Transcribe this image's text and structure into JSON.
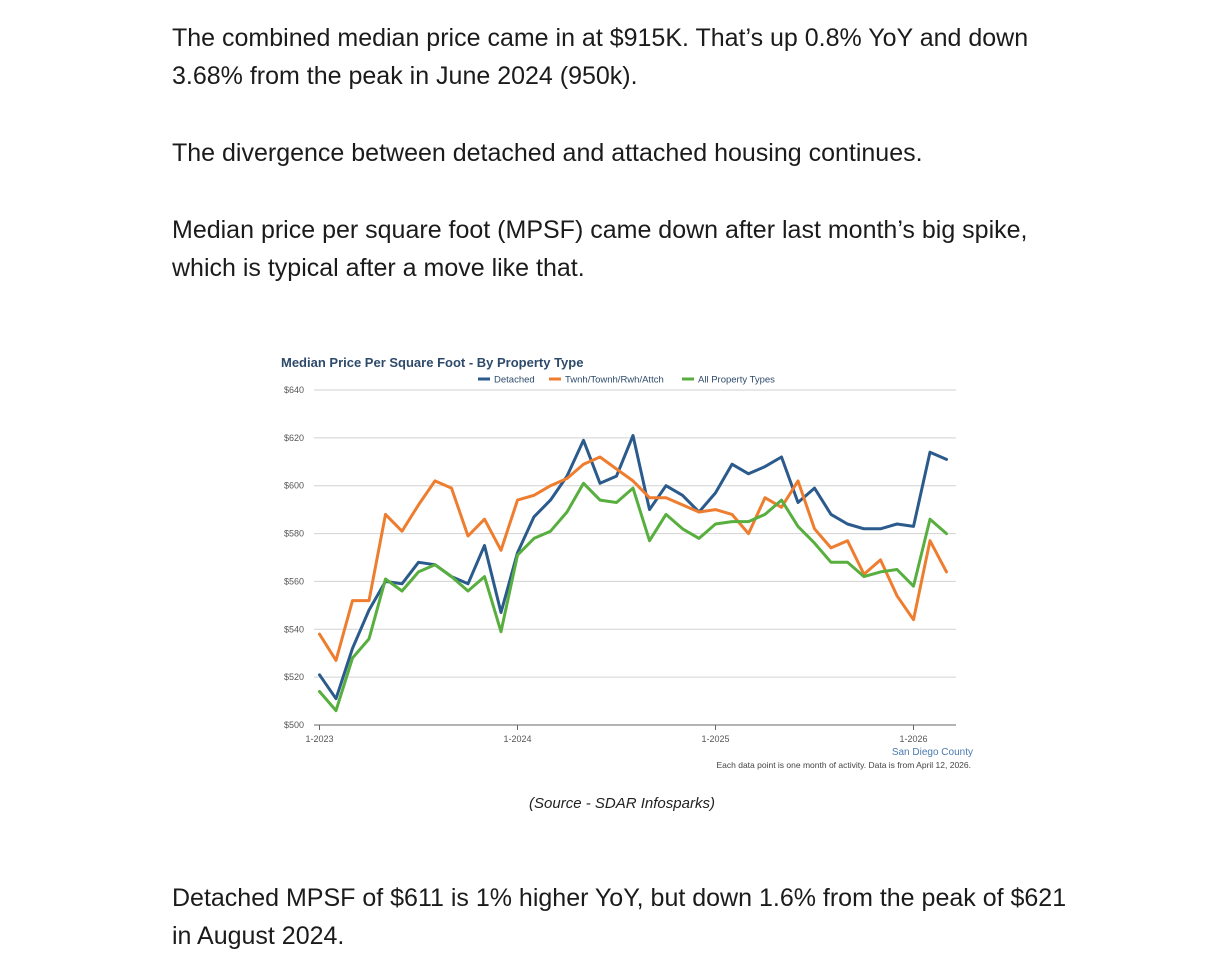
{
  "article": {
    "p1": "The combined median price came in at $915K. That’s up 0.8% YoY and down 3.68% from the peak in June 2024 (950k).",
    "p2": "The divergence between detached and attached housing continues.",
    "p3": "Median price per square foot (MPSF) came down after last month’s big spike, which is typical after a move like that.",
    "caption": "(Source - SDAR Infosparks)",
    "p4": "Detached MPSF of $611 is 1% higher YoY, but down 1.6% from the peak of $621 in August 2024."
  },
  "chart_data": {
    "type": "line",
    "title": "Median Price Per Square Foot - By Property Type",
    "region_label": "San Diego County",
    "footnote": "Each data point is one month of activity. Data is from April 12, 2026.",
    "legend_position": "top-center",
    "grid": true,
    "x_start": "2023-01",
    "x_tick_labels": [
      "1-2023",
      "1-2024",
      "1-2025",
      "1-2026"
    ],
    "y_tick_labels": [
      "$500",
      "$520",
      "$540",
      "$560",
      "$580",
      "$600",
      "$620",
      "$640"
    ],
    "ylim": [
      500,
      640
    ],
    "series": [
      {
        "name": "Detached",
        "color": "#2b5a8c",
        "values": [
          521,
          511,
          532,
          548,
          560,
          559,
          568,
          567,
          562,
          559,
          575,
          547,
          572,
          587,
          594,
          604,
          619,
          601,
          604,
          621,
          590,
          600,
          596,
          589,
          597,
          609,
          605,
          608,
          612,
          593,
          599,
          588,
          584,
          582,
          582,
          584,
          583,
          614,
          611
        ]
      },
      {
        "name": "Twnh/Townh/Rwh/Attch",
        "color": "#ee7d2f",
        "values": [
          538,
          527,
          552,
          552,
          588,
          581,
          592,
          602,
          599,
          579,
          586,
          573,
          594,
          596,
          600,
          603,
          609,
          612,
          607,
          602,
          595,
          595,
          592,
          589,
          590,
          588,
          580,
          595,
          591,
          602,
          582,
          574,
          577,
          563,
          569,
          554,
          544,
          577,
          564
        ]
      },
      {
        "name": "All Property Types",
        "color": "#58ae3e",
        "values": [
          514,
          506,
          528,
          536,
          561,
          556,
          564,
          567,
          562,
          556,
          562,
          539,
          571,
          578,
          581,
          589,
          601,
          594,
          593,
          599,
          577,
          588,
          582,
          578,
          584,
          585,
          585,
          588,
          594,
          583,
          576,
          568,
          568,
          562,
          564,
          565,
          558,
          586,
          580
        ]
      }
    ]
  }
}
